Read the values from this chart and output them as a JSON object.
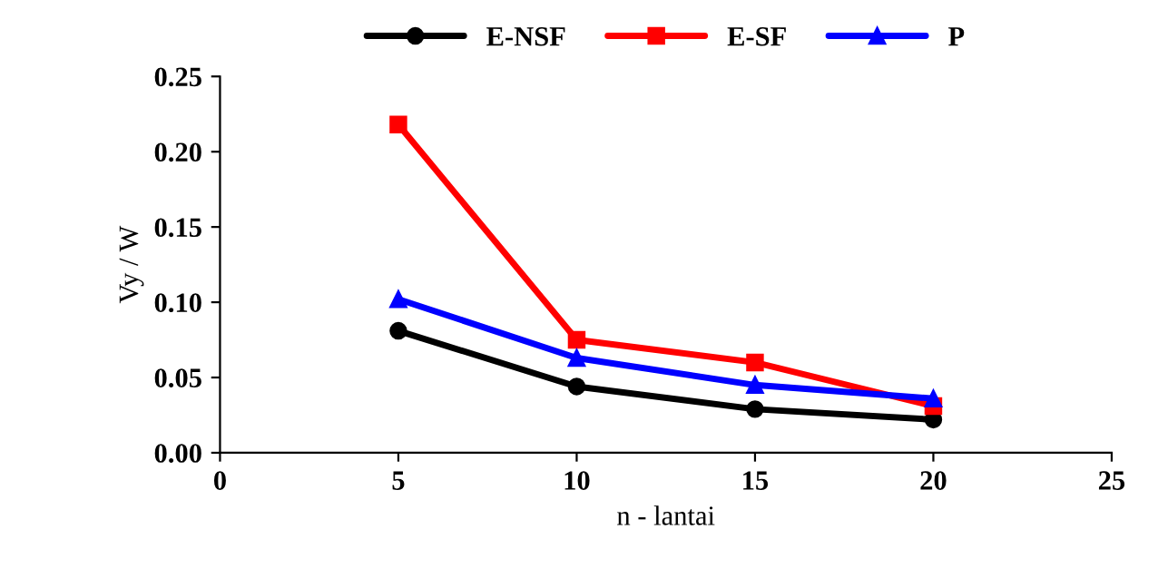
{
  "chart_data": {
    "type": "line",
    "xlabel": "n - lantai",
    "ylabel": "Vy / W",
    "x": [
      5,
      10,
      15,
      20
    ],
    "series": [
      {
        "name": "E-NSF",
        "color": "#000000",
        "marker": "circle",
        "values": [
          0.081,
          0.044,
          0.029,
          0.022
        ]
      },
      {
        "name": "E-SF",
        "color": "#ff0000",
        "marker": "square",
        "values": [
          0.218,
          0.075,
          0.06,
          0.031
        ]
      },
      {
        "name": "P",
        "color": "#0000ff",
        "marker": "triangle",
        "values": [
          0.102,
          0.063,
          0.045,
          0.036
        ]
      }
    ],
    "xlim": [
      0,
      25
    ],
    "xticks": [
      0,
      5,
      10,
      15,
      20,
      25
    ],
    "ylim": [
      0,
      0.25
    ],
    "yticks": [
      {
        "value": 0,
        "label": "0.00"
      },
      {
        "value": 0.05,
        "label": "0.05"
      },
      {
        "value": 0.1,
        "label": "0.10"
      },
      {
        "value": 0.15,
        "label": "0.15"
      },
      {
        "value": 0.2,
        "label": "0.20"
      },
      {
        "value": 0.25,
        "label": "0.25"
      }
    ],
    "legend": "top",
    "grid": false,
    "line_style": "solid"
  }
}
